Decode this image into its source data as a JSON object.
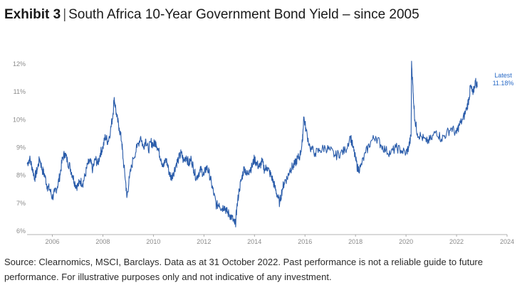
{
  "header": {
    "exhibit_label": "Exhibit 3",
    "separator": "|",
    "title": "South Africa 10-Year Government Bond Yield – since 2005"
  },
  "colors": {
    "line": "#2a5caa",
    "latest": "#2a6bc6",
    "axis": "#9a9a9a"
  },
  "chart_data": {
    "type": "line",
    "title": "South Africa 10-Year Government Bond Yield – since 2005",
    "xlim": [
      2005.0,
      2024.0
    ],
    "ylim": [
      6,
      12
    ],
    "x_ticks": [
      2006,
      2008,
      2010,
      2012,
      2014,
      2016,
      2018,
      2020,
      2022,
      2024
    ],
    "x_tick_labels": [
      "2006",
      "2008",
      "2010",
      "2012",
      "2014",
      "2016",
      "2018",
      "2020",
      "2022",
      "2024"
    ],
    "y_ticks": [
      6,
      7,
      8,
      9,
      10,
      11,
      12
    ],
    "y_tick_labels": [
      "6%",
      "7%",
      "8%",
      "9%",
      "10%",
      "11%",
      "12%"
    ],
    "grid": false,
    "series": [
      {
        "values_unit": "%",
        "points": [
          [
            2005.0,
            8.4
          ],
          [
            2005.1,
            8.6
          ],
          [
            2005.2,
            8.3
          ],
          [
            2005.3,
            7.9
          ],
          [
            2005.4,
            8.2
          ],
          [
            2005.5,
            8.6
          ],
          [
            2005.6,
            8.2
          ],
          [
            2005.7,
            8.0
          ],
          [
            2005.8,
            7.6
          ],
          [
            2005.9,
            7.5
          ],
          [
            2006.0,
            7.2
          ],
          [
            2006.1,
            7.4
          ],
          [
            2006.2,
            7.6
          ],
          [
            2006.3,
            8.0
          ],
          [
            2006.4,
            8.6
          ],
          [
            2006.5,
            8.8
          ],
          [
            2006.6,
            8.5
          ],
          [
            2006.7,
            8.3
          ],
          [
            2006.8,
            8.0
          ],
          [
            2006.9,
            7.7
          ],
          [
            2007.0,
            7.6
          ],
          [
            2007.1,
            7.8
          ],
          [
            2007.2,
            7.7
          ],
          [
            2007.3,
            8.0
          ],
          [
            2007.4,
            8.4
          ],
          [
            2007.5,
            8.5
          ],
          [
            2007.6,
            8.2
          ],
          [
            2007.7,
            8.6
          ],
          [
            2007.8,
            8.4
          ],
          [
            2007.9,
            8.8
          ],
          [
            2008.0,
            9.0
          ],
          [
            2008.1,
            9.4
          ],
          [
            2008.2,
            9.2
          ],
          [
            2008.3,
            9.6
          ],
          [
            2008.4,
            10.2
          ],
          [
            2008.45,
            10.8
          ],
          [
            2008.55,
            10.1
          ],
          [
            2008.65,
            9.7
          ],
          [
            2008.75,
            9.2
          ],
          [
            2008.8,
            8.6
          ],
          [
            2008.9,
            7.8
          ],
          [
            2008.95,
            7.2
          ],
          [
            2009.05,
            7.9
          ],
          [
            2009.2,
            8.6
          ],
          [
            2009.35,
            9.0
          ],
          [
            2009.5,
            9.4
          ],
          [
            2009.6,
            9.0
          ],
          [
            2009.7,
            9.3
          ],
          [
            2009.8,
            8.9
          ],
          [
            2009.9,
            9.2
          ],
          [
            2010.0,
            9.1
          ],
          [
            2010.1,
            9.2
          ],
          [
            2010.2,
            8.9
          ],
          [
            2010.3,
            8.6
          ],
          [
            2010.4,
            8.3
          ],
          [
            2010.5,
            8.6
          ],
          [
            2010.6,
            8.2
          ],
          [
            2010.7,
            7.9
          ],
          [
            2010.8,
            8.1
          ],
          [
            2010.9,
            8.4
          ],
          [
            2011.0,
            8.6
          ],
          [
            2011.1,
            8.8
          ],
          [
            2011.2,
            8.5
          ],
          [
            2011.3,
            8.7
          ],
          [
            2011.4,
            8.4
          ],
          [
            2011.5,
            8.6
          ],
          [
            2011.6,
            8.2
          ],
          [
            2011.7,
            7.9
          ],
          [
            2011.8,
            8.1
          ],
          [
            2011.9,
            8.2
          ],
          [
            2012.0,
            8.0
          ],
          [
            2012.1,
            8.3
          ],
          [
            2012.2,
            8.1
          ],
          [
            2012.3,
            7.7
          ],
          [
            2012.4,
            7.3
          ],
          [
            2012.5,
            6.9
          ],
          [
            2012.6,
            7.0
          ],
          [
            2012.7,
            6.8
          ],
          [
            2012.8,
            6.9
          ],
          [
            2012.9,
            6.7
          ],
          [
            2013.0,
            6.6
          ],
          [
            2013.1,
            6.5
          ],
          [
            2013.2,
            6.3
          ],
          [
            2013.25,
            6.25
          ],
          [
            2013.3,
            6.8
          ],
          [
            2013.4,
            7.5
          ],
          [
            2013.5,
            7.9
          ],
          [
            2013.6,
            8.3
          ],
          [
            2013.7,
            8.0
          ],
          [
            2013.8,
            8.2
          ],
          [
            2013.9,
            8.3
          ],
          [
            2014.0,
            8.6
          ],
          [
            2014.1,
            8.4
          ],
          [
            2014.2,
            8.3
          ],
          [
            2014.3,
            8.5
          ],
          [
            2014.4,
            8.2
          ],
          [
            2014.5,
            8.3
          ],
          [
            2014.6,
            8.1
          ],
          [
            2014.7,
            7.9
          ],
          [
            2014.8,
            7.6
          ],
          [
            2014.9,
            7.3
          ],
          [
            2015.0,
            7.0
          ],
          [
            2015.1,
            7.5
          ],
          [
            2015.2,
            7.8
          ],
          [
            2015.3,
            7.9
          ],
          [
            2015.4,
            8.2
          ],
          [
            2015.5,
            8.3
          ],
          [
            2015.6,
            8.4
          ],
          [
            2015.7,
            8.6
          ],
          [
            2015.8,
            8.7
          ],
          [
            2015.9,
            9.2
          ],
          [
            2015.95,
            10.1
          ],
          [
            2016.05,
            9.6
          ],
          [
            2016.2,
            9.0
          ],
          [
            2016.4,
            8.8
          ],
          [
            2016.6,
            8.9
          ],
          [
            2016.8,
            9.0
          ],
          [
            2017.0,
            8.9
          ],
          [
            2017.2,
            8.7
          ],
          [
            2017.4,
            8.8
          ],
          [
            2017.6,
            8.9
          ],
          [
            2017.8,
            9.4
          ],
          [
            2017.9,
            9.0
          ],
          [
            2018.0,
            8.6
          ],
          [
            2018.1,
            8.2
          ],
          [
            2018.2,
            8.3
          ],
          [
            2018.4,
            8.8
          ],
          [
            2018.6,
            9.2
          ],
          [
            2018.8,
            9.4
          ],
          [
            2019.0,
            9.1
          ],
          [
            2019.2,
            8.9
          ],
          [
            2019.4,
            8.8
          ],
          [
            2019.6,
            9.0
          ],
          [
            2019.8,
            8.9
          ],
          [
            2020.0,
            8.8
          ],
          [
            2020.1,
            9.0
          ],
          [
            2020.2,
            9.4
          ],
          [
            2020.22,
            12.1
          ],
          [
            2020.28,
            11.0
          ],
          [
            2020.35,
            10.0
          ],
          [
            2020.45,
            9.5
          ],
          [
            2020.6,
            9.4
          ],
          [
            2020.8,
            9.2
          ],
          [
            2021.0,
            9.3
          ],
          [
            2021.2,
            9.6
          ],
          [
            2021.4,
            9.3
          ],
          [
            2021.6,
            9.5
          ],
          [
            2021.8,
            9.7
          ],
          [
            2022.0,
            9.5
          ],
          [
            2022.1,
            9.8
          ],
          [
            2022.25,
            10.0
          ],
          [
            2022.4,
            10.4
          ],
          [
            2022.5,
            10.8
          ],
          [
            2022.55,
            11.2
          ],
          [
            2022.65,
            10.9
          ],
          [
            2022.75,
            11.4
          ],
          [
            2022.83,
            11.18
          ]
        ]
      }
    ],
    "annotations": [
      {
        "label": "Latest",
        "value_label": "11.18%"
      }
    ]
  },
  "footer": {
    "source_text": "Source: Clearnomics, MSCI, Barclays. Data as at 31 October 2022. Past performance is not a reliable guide to future performance. For illustrative purposes only and not indicative of any investment."
  }
}
